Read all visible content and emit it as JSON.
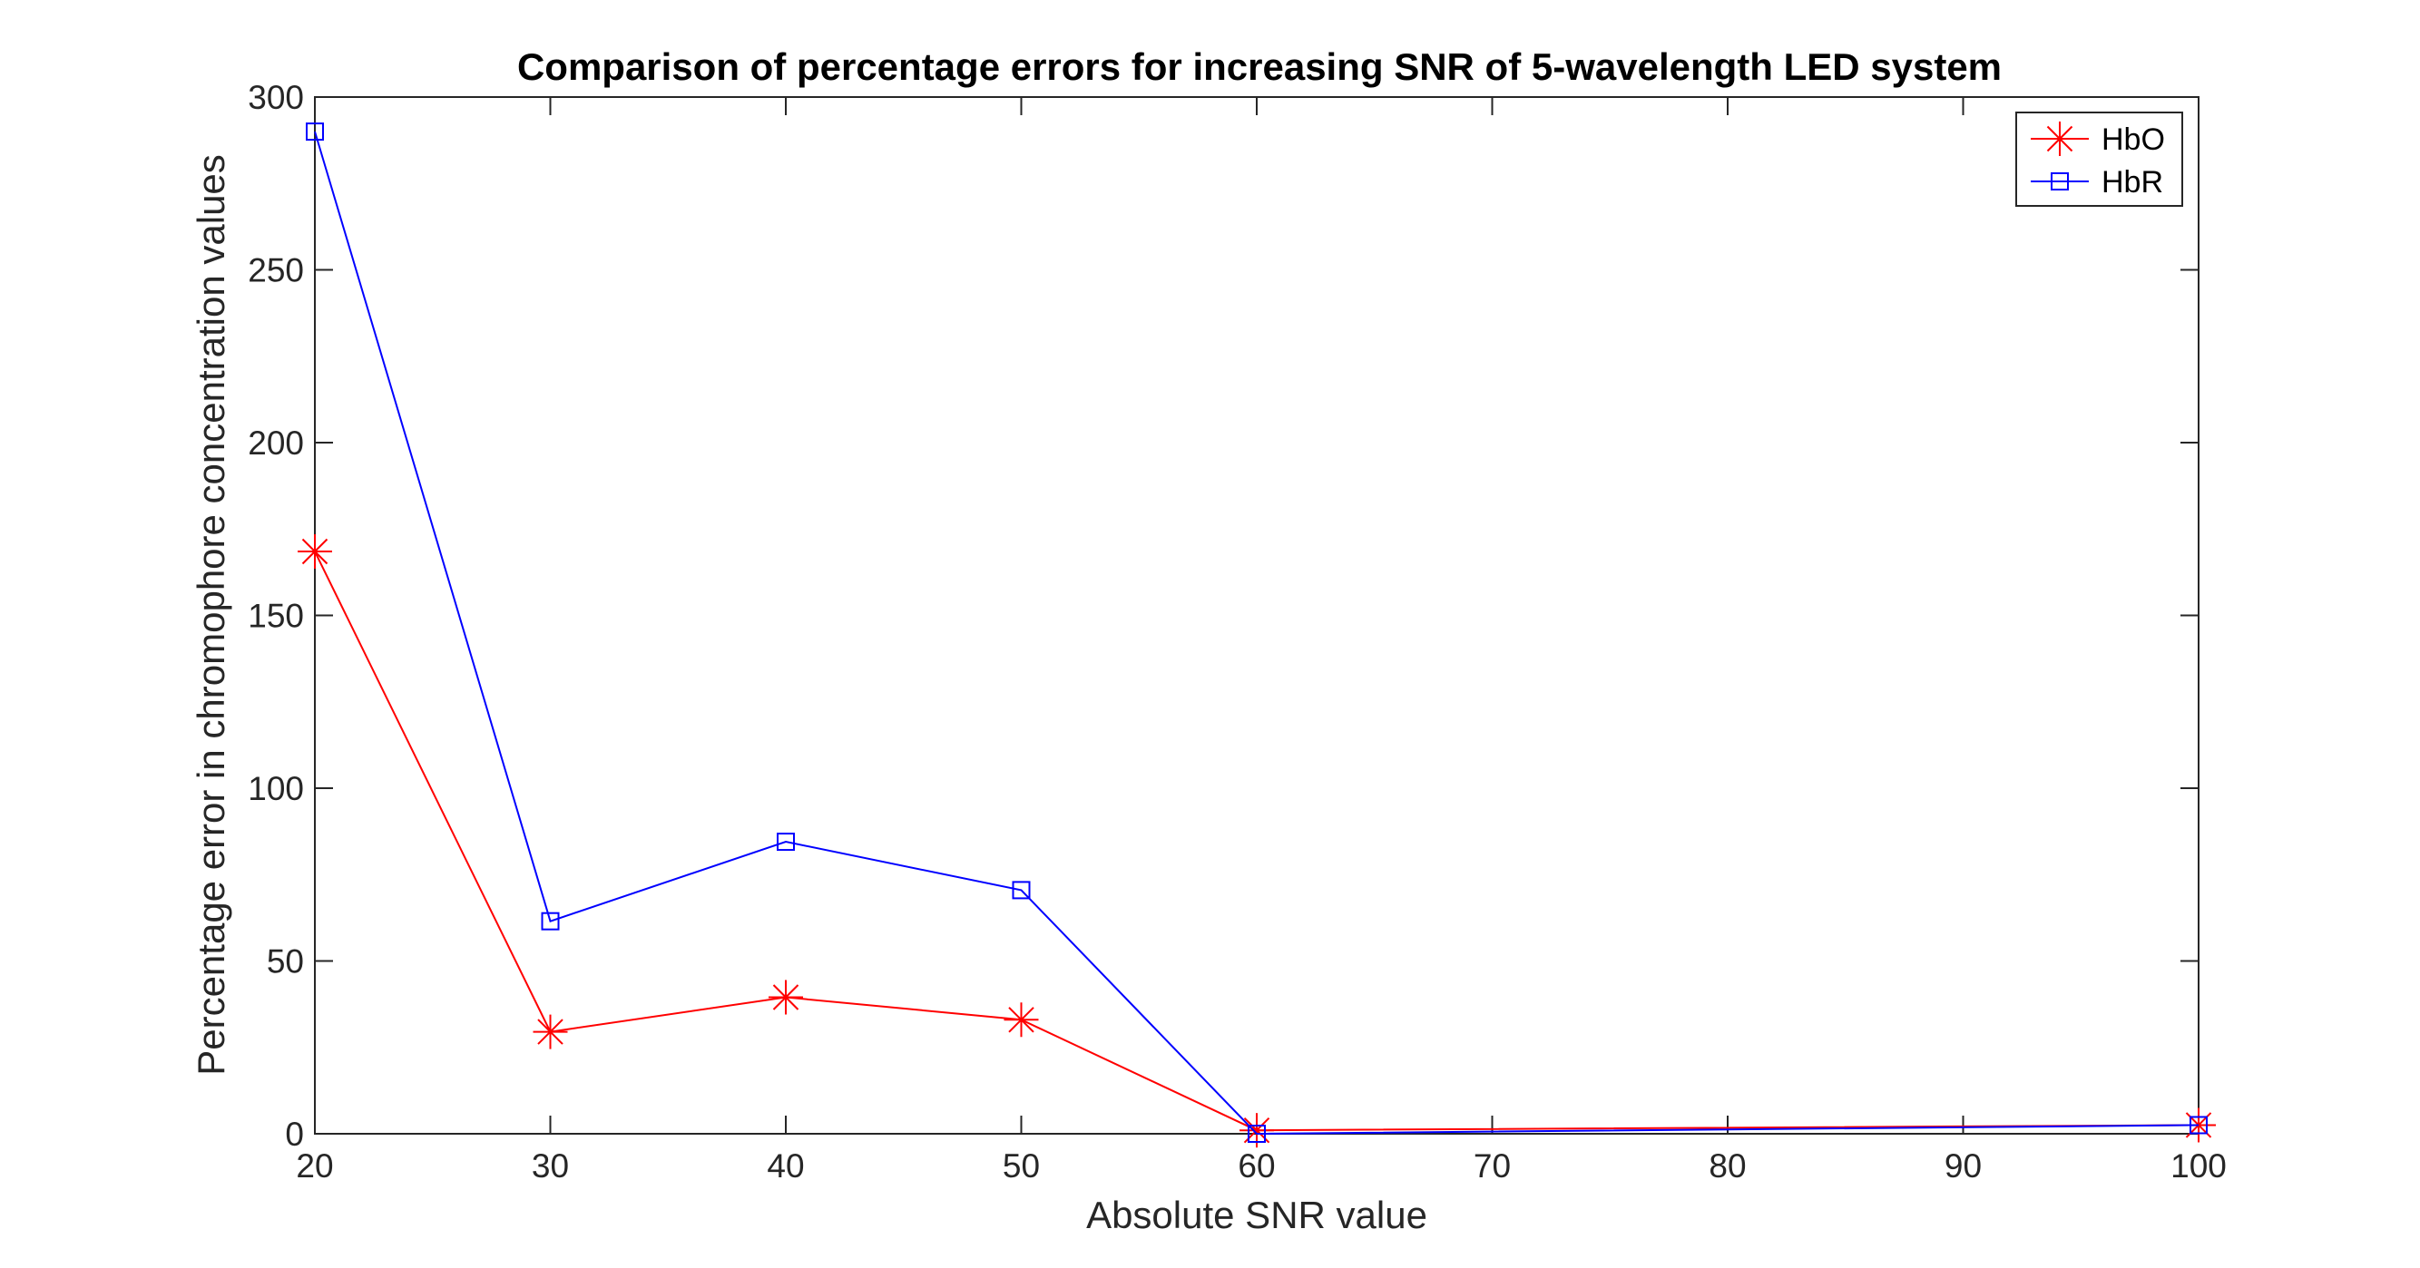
{
  "chart_data": {
    "type": "line",
    "title": "Comparison of percentage errors for increasing SNR of 5-wavelength LED system",
    "xlabel": "Absolute SNR value",
    "ylabel": "Percentage error in chromophore concentration values",
    "xlim": [
      20,
      100
    ],
    "ylim": [
      0,
      300
    ],
    "xticks": [
      20,
      30,
      40,
      50,
      60,
      70,
      80,
      90,
      100
    ],
    "yticks": [
      0,
      50,
      100,
      150,
      200,
      250,
      300
    ],
    "grid": false,
    "legend_position": "top-right",
    "x": [
      20,
      30,
      40,
      50,
      60,
      100
    ],
    "series": [
      {
        "name": "HbO",
        "color": "#ff0000",
        "marker": "asterisk",
        "values": [
          168.5,
          29.5,
          39.5,
          33,
          1,
          2.5
        ]
      },
      {
        "name": "HbR",
        "color": "#0000ff",
        "marker": "square",
        "values": [
          290,
          61.5,
          84.5,
          70.5,
          0,
          2.5
        ]
      }
    ]
  }
}
